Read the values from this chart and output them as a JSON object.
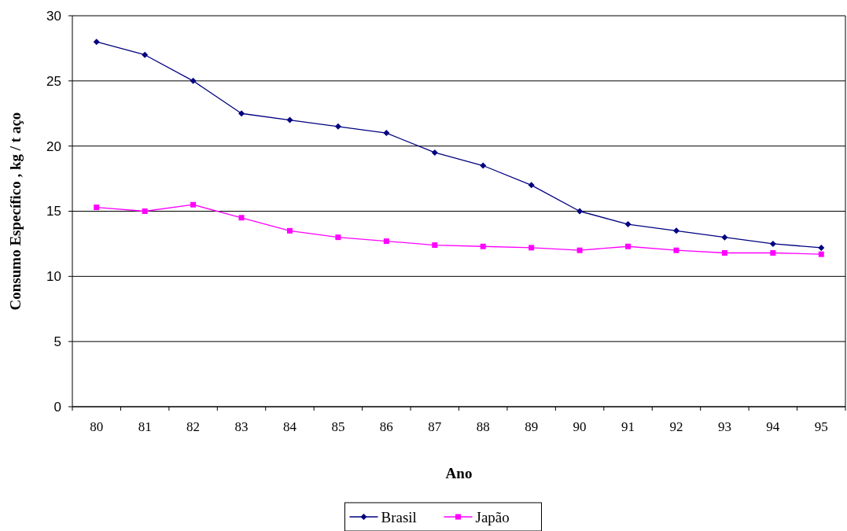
{
  "chart_data": {
    "type": "line",
    "xlabel": "Ano",
    "ylabel": "Consumo Específico , kg / t aço",
    "categories": [
      "80",
      "81",
      "82",
      "83",
      "84",
      "85",
      "86",
      "87",
      "88",
      "89",
      "90",
      "91",
      "92",
      "93",
      "94",
      "95"
    ],
    "series": [
      {
        "name": "Brasil",
        "color": "#000080",
        "marker": "diamond",
        "values": [
          28,
          27,
          25,
          22.5,
          22,
          21.5,
          21,
          19.5,
          18.5,
          17,
          15,
          14,
          13.5,
          13,
          12.5,
          12.2
        ]
      },
      {
        "name": "Japão",
        "color": "#ff00ff",
        "marker": "square",
        "values": [
          15.3,
          15,
          15.5,
          14.5,
          13.5,
          13,
          12.7,
          12.4,
          12.3,
          12.2,
          12,
          12.3,
          12,
          11.8,
          11.8,
          11.7
        ]
      }
    ],
    "ylim": [
      0,
      30
    ],
    "yticks": [
      0,
      5,
      10,
      15,
      20,
      25,
      30
    ],
    "grid": "y",
    "legend": "bottom"
  }
}
